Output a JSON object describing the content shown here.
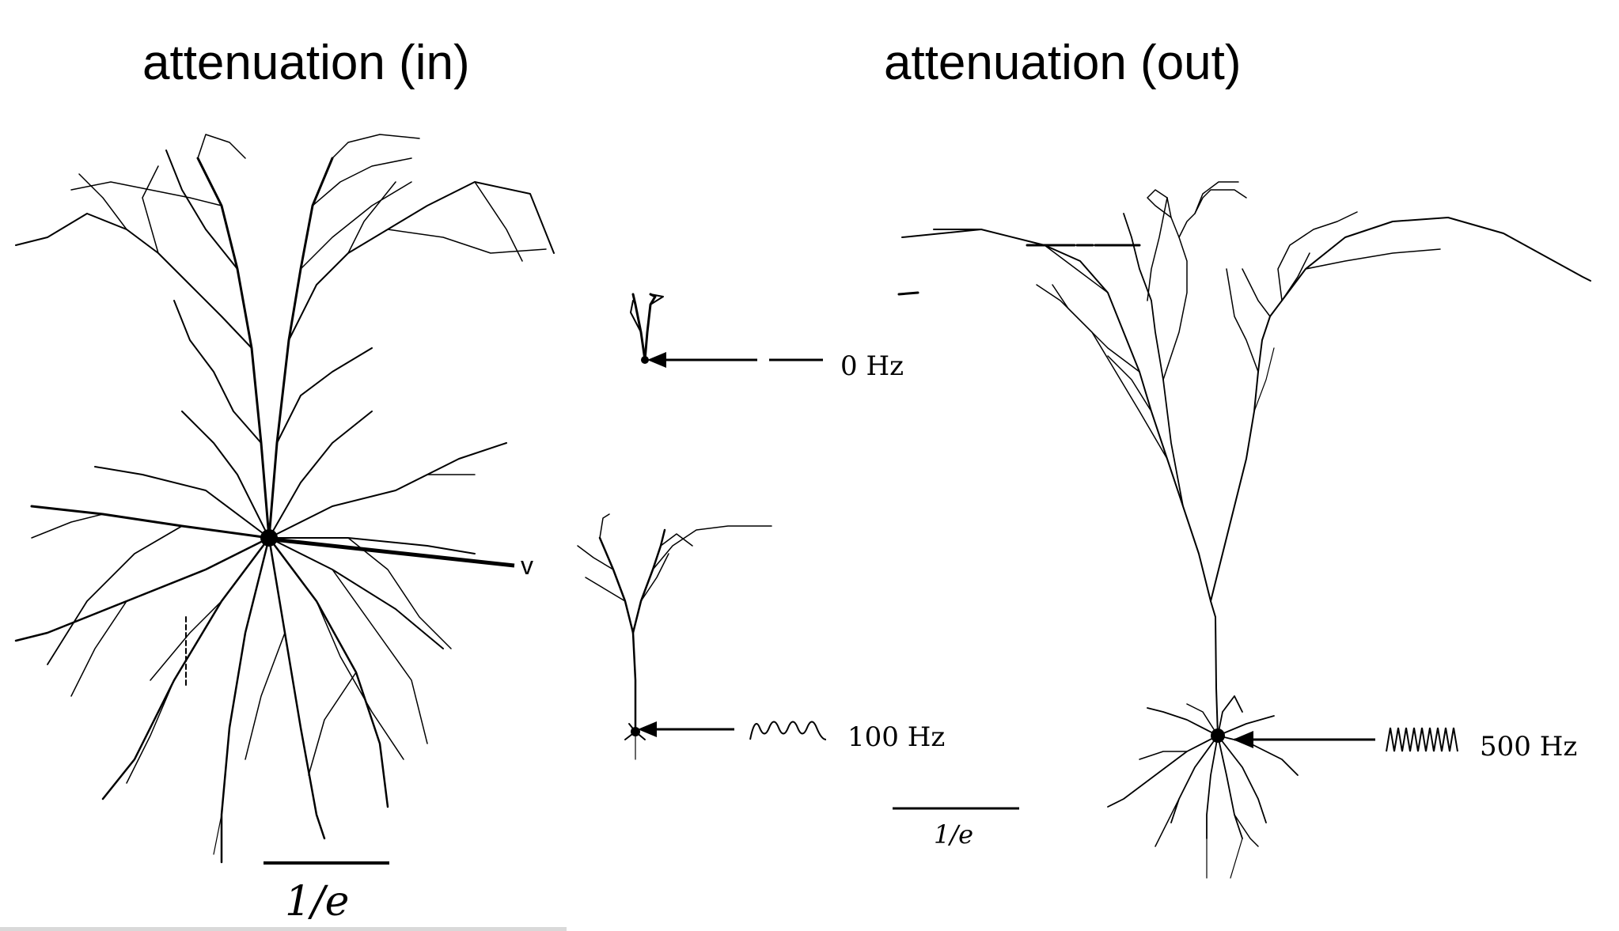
{
  "titles": {
    "left": "attenuation (in)",
    "right": "attenuation (out)"
  },
  "labels": {
    "voltage": "v",
    "freq_0": "0 Hz",
    "freq_100": "100 Hz",
    "freq_500": "500 Hz",
    "scale_left": "1/e",
    "scale_right": "1/e"
  },
  "icons": [
    "arrow-icon",
    "dc-line-icon",
    "sine-wave-icon"
  ]
}
